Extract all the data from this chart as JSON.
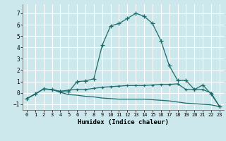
{
  "xlabel": "Humidex (Indice chaleur)",
  "background_color": "#cce8ec",
  "grid_color": "#ffffff",
  "line_color": "#1e6b6b",
  "xlim": [
    -0.5,
    23.5
  ],
  "ylim": [
    -1.5,
    7.8
  ],
  "yticks": [
    -1,
    0,
    1,
    2,
    3,
    4,
    5,
    6,
    7
  ],
  "xticks": [
    0,
    1,
    2,
    3,
    4,
    5,
    6,
    7,
    8,
    9,
    10,
    11,
    12,
    13,
    14,
    15,
    16,
    17,
    18,
    19,
    20,
    21,
    22,
    23
  ],
  "curve1_x": [
    0,
    1,
    2,
    3,
    4,
    5,
    6,
    7,
    8,
    9,
    10,
    11,
    12,
    13,
    14,
    15,
    16,
    17,
    18,
    19,
    20,
    21,
    22,
    23
  ],
  "curve1_y": [
    -0.5,
    -0.1,
    0.35,
    0.3,
    0.1,
    0.1,
    1.0,
    1.05,
    1.25,
    4.2,
    5.9,
    6.1,
    6.55,
    7.0,
    6.75,
    6.1,
    4.6,
    2.4,
    1.1,
    1.1,
    0.3,
    0.7,
    -0.1,
    -1.2
  ],
  "curve2_x": [
    0,
    1,
    2,
    3,
    4,
    5,
    6,
    7,
    8,
    9,
    10,
    11,
    12,
    13,
    14,
    15,
    16,
    17,
    18,
    19,
    20,
    21,
    22,
    23
  ],
  "curve2_y": [
    -0.5,
    -0.1,
    0.35,
    0.3,
    0.05,
    -0.15,
    -0.2,
    -0.3,
    -0.35,
    -0.45,
    -0.5,
    -0.55,
    -0.55,
    -0.55,
    -0.55,
    -0.6,
    -0.65,
    -0.7,
    -0.8,
    -0.9,
    -0.95,
    -1.0,
    -1.05,
    -1.2
  ],
  "curve3_x": [
    0,
    1,
    2,
    3,
    4,
    5,
    6,
    7,
    8,
    9,
    10,
    11,
    12,
    13,
    14,
    15,
    16,
    17,
    18,
    19,
    20,
    21,
    22,
    23
  ],
  "curve3_y": [
    -0.5,
    -0.1,
    0.35,
    0.3,
    0.15,
    0.25,
    0.3,
    0.3,
    0.4,
    0.5,
    0.55,
    0.6,
    0.65,
    0.65,
    0.65,
    0.7,
    0.75,
    0.75,
    0.8,
    0.3,
    0.3,
    0.3,
    0.0,
    -1.2
  ]
}
